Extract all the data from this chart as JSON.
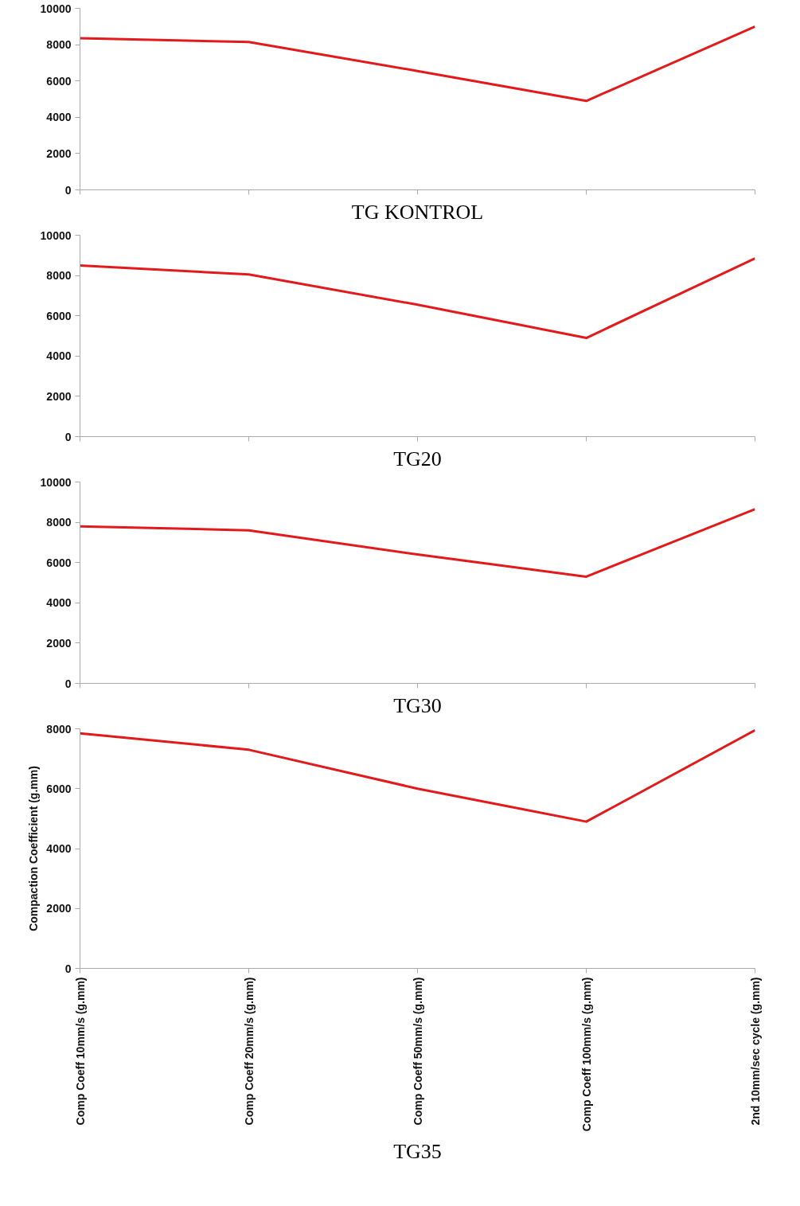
{
  "chart_data": [
    {
      "type": "line",
      "title": "TG KONTROL",
      "categories": [
        null,
        null,
        null,
        null,
        null
      ],
      "values": [
        8350,
        8150,
        6550,
        4900,
        9000
      ],
      "color": "#e31a1c",
      "ylim": [
        0,
        10000
      ],
      "yticks": [
        0,
        2000,
        4000,
        6000,
        8000,
        10000
      ],
      "tick_labels": "y"
    },
    {
      "type": "line",
      "title": "TG20",
      "categories": [
        null,
        null,
        null,
        null,
        null
      ],
      "values": [
        8500,
        8050,
        6550,
        4900,
        8850
      ],
      "color": "#e31a1c",
      "ylim": [
        0,
        10000
      ],
      "yticks": [
        0,
        2000,
        4000,
        6000,
        8000,
        10000
      ],
      "tick_labels": "y"
    },
    {
      "type": "line",
      "title": "TG30",
      "categories": [
        null,
        null,
        null,
        null,
        null
      ],
      "values": [
        7800,
        7600,
        6400,
        5300,
        8650
      ],
      "color": "#e31a1c",
      "ylim": [
        0,
        10000
      ],
      "yticks": [
        0,
        2000,
        4000,
        6000,
        8000,
        10000
      ],
      "tick_labels": "y"
    },
    {
      "type": "line",
      "title": "TG35",
      "ylabel": "Compaction Coefficient (g.mm)",
      "categories": [
        "Comp Coeff 10mm/s (g.mm)",
        "Comp Coeff 20mm/s (g.mm)",
        "Comp Coeff 50mm/s (g.mm)",
        "Comp Coeff 100mm/s (g.mm)",
        "2nd 10mm/sec cycle (g.mm)"
      ],
      "values": [
        7850,
        7300,
        6000,
        4900,
        7950
      ],
      "color": "#e31a1c",
      "ylim": [
        0,
        8000
      ],
      "yticks": [
        0,
        2000,
        4000,
        6000,
        8000
      ]
    }
  ]
}
